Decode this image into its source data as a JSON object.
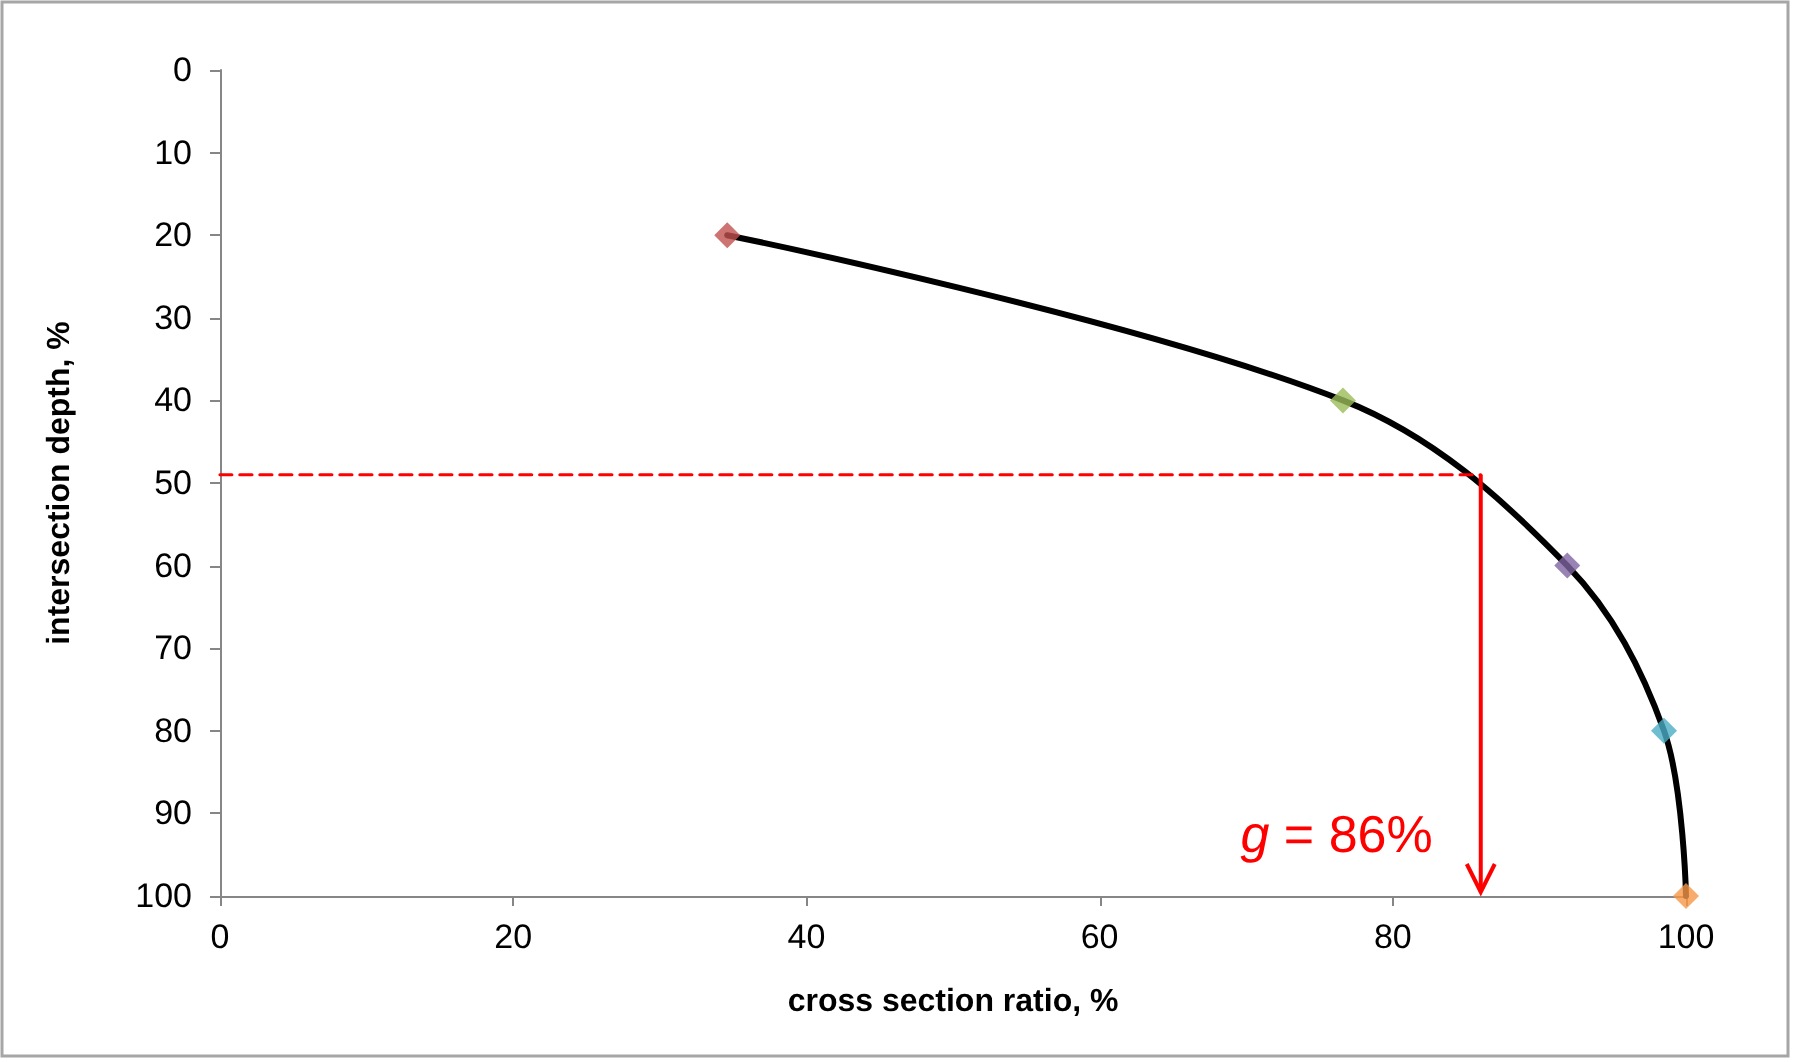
{
  "chart_data": {
    "type": "line",
    "xlabel": "cross section ratio, %",
    "ylabel": "intersection depth, %",
    "xlim": [
      0,
      100
    ],
    "xticks": [
      0,
      20,
      40,
      60,
      80,
      100
    ],
    "ylim": [
      100,
      0
    ],
    "yticks": [
      0,
      10,
      20,
      30,
      40,
      50,
      60,
      70,
      80,
      90,
      100
    ],
    "annotations": [
      {
        "text": "g = 86%",
        "x": 86,
        "y": 49
      }
    ],
    "series": [
      {
        "color": "#000000",
        "marker": "none",
        "line_style": "solid",
        "x": [
          34.6,
          76.6,
          91.9,
          98.5,
          100
        ],
        "values": [
          20,
          40,
          60,
          80,
          100
        ]
      },
      {
        "type": "scatter",
        "marker": "diamond",
        "colors": [
          "#c0504d",
          "#9bbb59",
          "#8064a2",
          "#4bacc6",
          "#f79646"
        ],
        "x": [
          34.6,
          76.6,
          91.9,
          98.5,
          100
        ],
        "values": [
          20,
          40,
          60,
          80,
          100
        ]
      },
      {
        "color": "#ff0000",
        "marker": "none",
        "line_style": "dashed",
        "x": [
          0,
          86
        ],
        "values": [
          49,
          49
        ]
      }
    ]
  }
}
